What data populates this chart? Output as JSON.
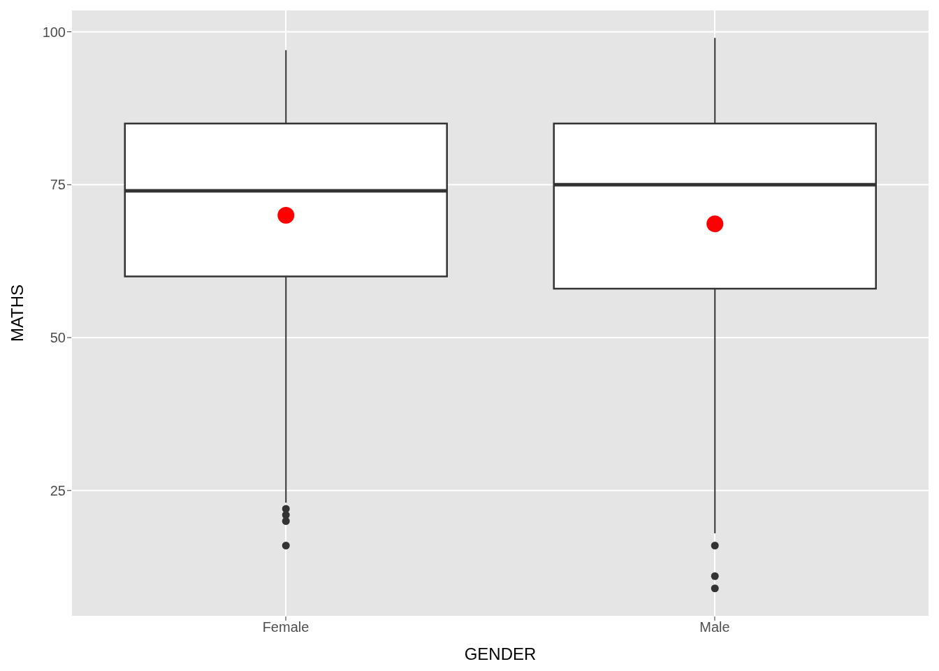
{
  "chart_data": {
    "type": "box",
    "xlabel": "GENDER",
    "ylabel": "MATHS",
    "categories": [
      "Female",
      "Male"
    ],
    "ylim": [
      4.4,
      103.6
    ],
    "yticks": [
      25,
      50,
      75,
      100
    ],
    "grid": true,
    "series": [
      {
        "color": "#333333",
        "boxes": [
          {
            "low": 23,
            "q1": 60,
            "median": 74,
            "q3": 85,
            "high": 97,
            "mean": 70,
            "outliers": [
              22,
              21,
              20,
              16
            ]
          },
          {
            "low": 18,
            "q1": 58,
            "median": 75,
            "q3": 85,
            "high": 99,
            "mean": 68.6,
            "outliers": [
              16,
              11,
              9
            ]
          }
        ]
      }
    ]
  }
}
